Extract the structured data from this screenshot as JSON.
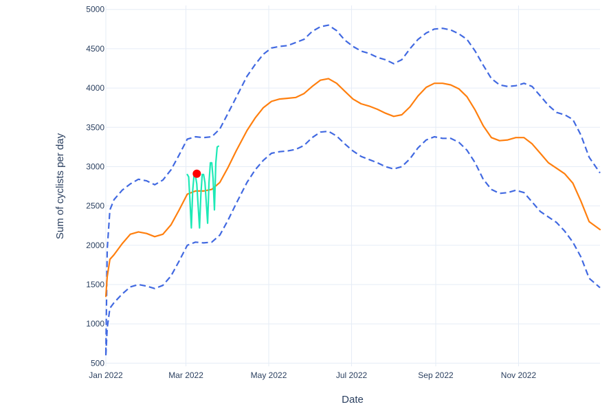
{
  "chart_data": {
    "type": "line",
    "title": "",
    "xlabel": "Date",
    "ylabel": "Sum of cyclists per day",
    "x_ticks": [
      "Jan 2022",
      "Mar 2022",
      "May 2022",
      "Jul 2022",
      "Sep 2022",
      "Nov 2022"
    ],
    "y_ticks": [
      "500",
      "1000",
      "1500",
      "2000",
      "2500",
      "3000",
      "3500",
      "4000",
      "4500",
      "5000"
    ],
    "xlim": [
      "2022-01-01",
      "2022-12-31"
    ],
    "ylim": [
      460,
      5050
    ],
    "grid": true,
    "legend": "none",
    "colors": {
      "upper": "#4169E1",
      "forecast": "#FF7F0E",
      "lower": "#4169E1",
      "actual": "#1DE9B6",
      "point": "#FF0000",
      "grid": "#E5ECF6",
      "text": "#2a3f5f"
    },
    "series": [
      {
        "style": "dashed",
        "points": [
          [
            "2022-01-01",
            620
          ],
          [
            "2022-01-02",
            1950
          ],
          [
            "2022-01-04",
            2450
          ],
          [
            "2022-01-07",
            2580
          ],
          [
            "2022-01-13",
            2700
          ],
          [
            "2022-01-19",
            2780
          ],
          [
            "2022-01-25",
            2840
          ],
          [
            "2022-01-31",
            2820
          ],
          [
            "2022-02-06",
            2770
          ],
          [
            "2022-02-12",
            2830
          ],
          [
            "2022-02-18",
            2960
          ],
          [
            "2022-02-24",
            3150
          ],
          [
            "2022-03-02",
            3350
          ],
          [
            "2022-03-08",
            3380
          ],
          [
            "2022-03-14",
            3370
          ],
          [
            "2022-03-20",
            3380
          ],
          [
            "2022-03-26",
            3480
          ],
          [
            "2022-04-01",
            3680
          ],
          [
            "2022-04-07",
            3880
          ],
          [
            "2022-04-15",
            4150
          ],
          [
            "2022-04-21",
            4300
          ],
          [
            "2022-04-27",
            4430
          ],
          [
            "2022-05-03",
            4510
          ],
          [
            "2022-05-09",
            4530
          ],
          [
            "2022-05-15",
            4540
          ],
          [
            "2022-05-21",
            4580
          ],
          [
            "2022-05-27",
            4620
          ],
          [
            "2022-06-02",
            4720
          ],
          [
            "2022-06-08",
            4780
          ],
          [
            "2022-06-14",
            4800
          ],
          [
            "2022-06-20",
            4730
          ],
          [
            "2022-06-26",
            4610
          ],
          [
            "2022-07-02",
            4530
          ],
          [
            "2022-07-08",
            4470
          ],
          [
            "2022-07-14",
            4440
          ],
          [
            "2022-07-20",
            4390
          ],
          [
            "2022-07-26",
            4360
          ],
          [
            "2022-08-01",
            4310
          ],
          [
            "2022-08-07",
            4360
          ],
          [
            "2022-08-13",
            4500
          ],
          [
            "2022-08-19",
            4620
          ],
          [
            "2022-08-25",
            4700
          ],
          [
            "2022-08-31",
            4750
          ],
          [
            "2022-09-06",
            4760
          ],
          [
            "2022-09-12",
            4740
          ],
          [
            "2022-09-18",
            4690
          ],
          [
            "2022-09-24",
            4620
          ],
          [
            "2022-09-30",
            4470
          ],
          [
            "2022-10-06",
            4290
          ],
          [
            "2022-10-12",
            4120
          ],
          [
            "2022-10-18",
            4040
          ],
          [
            "2022-10-24",
            4020
          ],
          [
            "2022-10-30",
            4030
          ],
          [
            "2022-11-05",
            4060
          ],
          [
            "2022-11-11",
            4020
          ],
          [
            "2022-11-17",
            3900
          ],
          [
            "2022-11-23",
            3780
          ],
          [
            "2022-11-29",
            3690
          ],
          [
            "2022-12-05",
            3660
          ],
          [
            "2022-12-11",
            3600
          ],
          [
            "2022-12-17",
            3400
          ],
          [
            "2022-12-23",
            3120
          ],
          [
            "2022-12-31",
            2920
          ]
        ]
      },
      {
        "style": "solid",
        "points": [
          [
            "2022-01-01",
            1350
          ],
          [
            "2022-01-02",
            1600
          ],
          [
            "2022-01-04",
            1820
          ],
          [
            "2022-01-07",
            1880
          ],
          [
            "2022-01-13",
            2020
          ],
          [
            "2022-01-19",
            2140
          ],
          [
            "2022-01-25",
            2170
          ],
          [
            "2022-01-31",
            2150
          ],
          [
            "2022-02-06",
            2110
          ],
          [
            "2022-02-12",
            2140
          ],
          [
            "2022-02-18",
            2260
          ],
          [
            "2022-02-24",
            2450
          ],
          [
            "2022-03-02",
            2650
          ],
          [
            "2022-03-08",
            2690
          ],
          [
            "2022-03-14",
            2690
          ],
          [
            "2022-03-20",
            2710
          ],
          [
            "2022-03-26",
            2800
          ],
          [
            "2022-04-01",
            2990
          ],
          [
            "2022-04-07",
            3200
          ],
          [
            "2022-04-15",
            3460
          ],
          [
            "2022-04-21",
            3620
          ],
          [
            "2022-04-27",
            3750
          ],
          [
            "2022-05-03",
            3830
          ],
          [
            "2022-05-09",
            3860
          ],
          [
            "2022-05-15",
            3870
          ],
          [
            "2022-05-21",
            3880
          ],
          [
            "2022-05-27",
            3930
          ],
          [
            "2022-06-02",
            4020
          ],
          [
            "2022-06-08",
            4100
          ],
          [
            "2022-06-14",
            4120
          ],
          [
            "2022-06-20",
            4060
          ],
          [
            "2022-06-26",
            3960
          ],
          [
            "2022-07-02",
            3860
          ],
          [
            "2022-07-08",
            3800
          ],
          [
            "2022-07-14",
            3770
          ],
          [
            "2022-07-20",
            3730
          ],
          [
            "2022-07-26",
            3680
          ],
          [
            "2022-08-01",
            3640
          ],
          [
            "2022-08-07",
            3660
          ],
          [
            "2022-08-13",
            3760
          ],
          [
            "2022-08-19",
            3900
          ],
          [
            "2022-08-25",
            4010
          ],
          [
            "2022-08-31",
            4060
          ],
          [
            "2022-09-06",
            4060
          ],
          [
            "2022-09-12",
            4040
          ],
          [
            "2022-09-18",
            3990
          ],
          [
            "2022-09-24",
            3890
          ],
          [
            "2022-09-30",
            3720
          ],
          [
            "2022-10-06",
            3520
          ],
          [
            "2022-10-12",
            3370
          ],
          [
            "2022-10-18",
            3330
          ],
          [
            "2022-10-24",
            3340
          ],
          [
            "2022-10-30",
            3370
          ],
          [
            "2022-11-05",
            3370
          ],
          [
            "2022-11-11",
            3290
          ],
          [
            "2022-11-17",
            3170
          ],
          [
            "2022-11-23",
            3050
          ],
          [
            "2022-11-29",
            2980
          ],
          [
            "2022-12-05",
            2910
          ],
          [
            "2022-12-11",
            2790
          ],
          [
            "2022-12-17",
            2560
          ],
          [
            "2022-12-23",
            2300
          ],
          [
            "2022-12-31",
            2200
          ]
        ]
      },
      {
        "style": "dashed",
        "points": [
          [
            "2022-01-01",
            600
          ],
          [
            "2022-01-02",
            950
          ],
          [
            "2022-01-04",
            1200
          ],
          [
            "2022-01-07",
            1270
          ],
          [
            "2022-01-13",
            1380
          ],
          [
            "2022-01-19",
            1470
          ],
          [
            "2022-01-25",
            1500
          ],
          [
            "2022-01-31",
            1480
          ],
          [
            "2022-02-06",
            1450
          ],
          [
            "2022-02-12",
            1490
          ],
          [
            "2022-02-18",
            1610
          ],
          [
            "2022-02-24",
            1800
          ],
          [
            "2022-03-02",
            2000
          ],
          [
            "2022-03-08",
            2040
          ],
          [
            "2022-03-14",
            2030
          ],
          [
            "2022-03-20",
            2040
          ],
          [
            "2022-03-26",
            2130
          ],
          [
            "2022-04-01",
            2320
          ],
          [
            "2022-04-07",
            2530
          ],
          [
            "2022-04-15",
            2800
          ],
          [
            "2022-04-21",
            2960
          ],
          [
            "2022-04-27",
            3080
          ],
          [
            "2022-05-03",
            3170
          ],
          [
            "2022-05-09",
            3190
          ],
          [
            "2022-05-15",
            3200
          ],
          [
            "2022-05-21",
            3220
          ],
          [
            "2022-05-27",
            3270
          ],
          [
            "2022-06-02",
            3370
          ],
          [
            "2022-06-08",
            3440
          ],
          [
            "2022-06-14",
            3450
          ],
          [
            "2022-06-20",
            3390
          ],
          [
            "2022-06-26",
            3290
          ],
          [
            "2022-07-02",
            3200
          ],
          [
            "2022-07-08",
            3130
          ],
          [
            "2022-07-14",
            3090
          ],
          [
            "2022-07-20",
            3050
          ],
          [
            "2022-07-26",
            3000
          ],
          [
            "2022-08-01",
            2970
          ],
          [
            "2022-08-07",
            3000
          ],
          [
            "2022-08-13",
            3100
          ],
          [
            "2022-08-19",
            3240
          ],
          [
            "2022-08-25",
            3340
          ],
          [
            "2022-08-31",
            3380
          ],
          [
            "2022-09-06",
            3360
          ],
          [
            "2022-09-12",
            3360
          ],
          [
            "2022-09-18",
            3310
          ],
          [
            "2022-09-24",
            3210
          ],
          [
            "2022-09-30",
            3050
          ],
          [
            "2022-10-06",
            2840
          ],
          [
            "2022-10-12",
            2710
          ],
          [
            "2022-10-18",
            2660
          ],
          [
            "2022-10-24",
            2670
          ],
          [
            "2022-10-30",
            2700
          ],
          [
            "2022-11-05",
            2670
          ],
          [
            "2022-11-11",
            2550
          ],
          [
            "2022-11-17",
            2430
          ],
          [
            "2022-11-23",
            2360
          ],
          [
            "2022-11-29",
            2290
          ],
          [
            "2022-12-05",
            2180
          ],
          [
            "2022-12-11",
            2040
          ],
          [
            "2022-12-17",
            1850
          ],
          [
            "2022-12-23",
            1580
          ],
          [
            "2022-12-31",
            1460
          ]
        ]
      },
      {
        "style": "solid",
        "points": [
          [
            "2022-03-02",
            2900
          ],
          [
            "2022-03-03",
            2870
          ],
          [
            "2022-03-04",
            2550
          ],
          [
            "2022-03-05",
            2220
          ],
          [
            "2022-03-06",
            2700
          ],
          [
            "2022-03-07",
            2900
          ],
          [
            "2022-03-08",
            2880
          ],
          [
            "2022-03-09",
            2780
          ],
          [
            "2022-03-11",
            2220
          ],
          [
            "2022-03-12",
            2650
          ],
          [
            "2022-03-13",
            2900
          ],
          [
            "2022-03-14",
            2900
          ],
          [
            "2022-03-15",
            2800
          ],
          [
            "2022-03-17",
            2280
          ],
          [
            "2022-03-18",
            2800
          ],
          [
            "2022-03-19",
            3050
          ],
          [
            "2022-03-20",
            3050
          ],
          [
            "2022-03-21",
            2850
          ],
          [
            "2022-03-22",
            2450
          ],
          [
            "2022-03-23",
            3050
          ],
          [
            "2022-03-24",
            3250
          ],
          [
            "2022-03-25",
            3260
          ]
        ]
      },
      {
        "style": "marker",
        "points": [
          [
            "2022-03-09",
            2910
          ]
        ]
      }
    ]
  }
}
